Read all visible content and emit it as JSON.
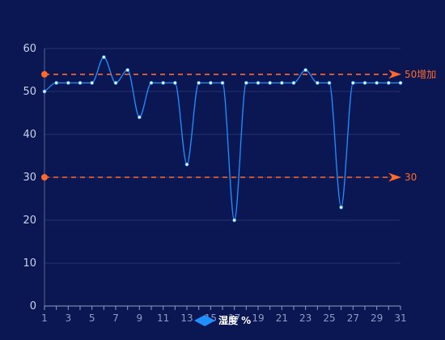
{
  "chart_data": {
    "type": "line",
    "x": [
      1,
      2,
      3,
      4,
      5,
      6,
      7,
      8,
      9,
      10,
      11,
      12,
      13,
      14,
      15,
      16,
      17,
      18,
      19,
      20,
      21,
      22,
      23,
      24,
      25,
      26,
      27,
      28,
      29,
      30,
      31
    ],
    "x_tick_labels": [
      "1",
      "3",
      "5",
      "7",
      "9",
      "11",
      "13",
      "15",
      "17",
      "19",
      "21",
      "23",
      "25",
      "27",
      "29",
      "31"
    ],
    "series": [
      {
        "name": "湿度 %",
        "values": [
          50,
          52,
          52,
          52,
          52,
          58,
          52,
          55,
          44,
          52,
          52,
          52,
          33,
          52,
          52,
          52,
          20,
          52,
          52,
          52,
          52,
          52,
          55,
          52,
          52,
          23,
          52,
          52,
          52,
          52,
          52
        ]
      }
    ],
    "ylim": [
      0,
      60
    ],
    "y_ticks": [
      0,
      10,
      20,
      30,
      40,
      50,
      60
    ],
    "mark_lines": [
      {
        "value": 54,
        "label": "50增加"
      },
      {
        "value": 30,
        "label": "30"
      }
    ],
    "legend_position": "bottom-center",
    "grid": true,
    "colors": {
      "background": "#0b1752",
      "line": "#1e90ff",
      "point": "#ffffff",
      "mark_line": "#ff6a2b",
      "grid": "#24336f",
      "legend_icon": "#1e90ff"
    }
  }
}
